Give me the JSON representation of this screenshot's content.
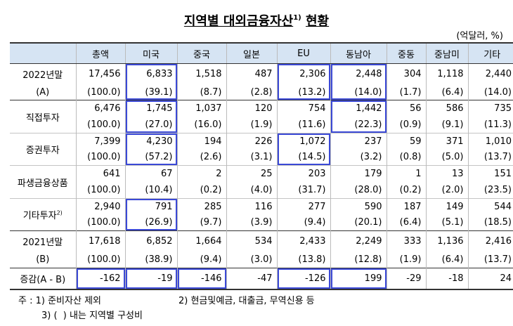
{
  "title": "지역별 대외금융자산",
  "title_note": "1)",
  "title_suffix": "현황",
  "unit": "(억달러, %)",
  "columns": [
    "총액",
    "미국",
    "중국",
    "일본",
    "EU",
    "동남아",
    "중동",
    "중남미",
    "기타"
  ],
  "rows": [
    {
      "label": "2022년말",
      "label2": "(A)",
      "values": [
        "17,456",
        "6,833",
        "1,518",
        "487",
        "2,306",
        "2,448",
        "304",
        "1,118",
        "2,440"
      ],
      "shares": [
        "(100.0)",
        "(39.1)",
        "(8.7)",
        "(2.8)",
        "(13.2)",
        "(14.0)",
        "(1.7)",
        "(6.4)",
        "(14.0)"
      ]
    },
    {
      "label": "직접투자",
      "values": [
        "6,476",
        "1,745",
        "1,037",
        "120",
        "754",
        "1,442",
        "56",
        "586",
        "735"
      ],
      "shares": [
        "(100.0)",
        "(27.0)",
        "(16.0)",
        "(1.9)",
        "(11.6)",
        "(22.3)",
        "(0.9)",
        "(9.1)",
        "(11.3)"
      ]
    },
    {
      "label": "증권투자",
      "values": [
        "7,399",
        "4,230",
        "194",
        "226",
        "1,072",
        "237",
        "59",
        "371",
        "1,010"
      ],
      "shares": [
        "(100.0)",
        "(57.2)",
        "(2.6)",
        "(3.1)",
        "(14.5)",
        "(3.2)",
        "(0.8)",
        "(5.0)",
        "(13.7)"
      ]
    },
    {
      "label": "파생금융상품",
      "values": [
        "641",
        "67",
        "2",
        "25",
        "203",
        "179",
        "1",
        "13",
        "151"
      ],
      "shares": [
        "(100.0)",
        "(10.4)",
        "(0.2)",
        "(4.0)",
        "(31.7)",
        "(28.0)",
        "(0.2)",
        "(2.0)",
        "(23.5)"
      ]
    },
    {
      "label": "기타투자",
      "label_note": "2)",
      "values": [
        "2,940",
        "791",
        "285",
        "116",
        "277",
        "590",
        "187",
        "149",
        "544"
      ],
      "shares": [
        "(100.0)",
        "(26.9)",
        "(9.7)",
        "(3.9)",
        "(9.4)",
        "(20.1)",
        "(6.4)",
        "(5.1)",
        "(18.5)"
      ]
    },
    {
      "label": "2021년말",
      "label2": "(B)",
      "values": [
        "17,618",
        "6,852",
        "1,664",
        "534",
        "2,433",
        "2,249",
        "333",
        "1,136",
        "2,416"
      ],
      "shares": [
        "(100.0)",
        "(38.9)",
        "(9.4)",
        "(3.0)",
        "(13.8)",
        "(12.8)",
        "(1.9)",
        "(6.4)",
        "(13.7)"
      ]
    }
  ],
  "diff_row": {
    "label": "증감(A - B)",
    "values": [
      "-162",
      "-19",
      "-146",
      "-47",
      "-126",
      "199",
      "-29",
      "-18",
      "24"
    ]
  },
  "notes": {
    "prefix": "주 :",
    "n1": "1) 준비자산 제외",
    "n2": "2) 현금및예금, 대출금, 무역신용 등",
    "n3": "3) (  ) 내는 지역별 구성비"
  },
  "highlight_color": "#3b49d6",
  "header_color": "#d6e4f3"
}
